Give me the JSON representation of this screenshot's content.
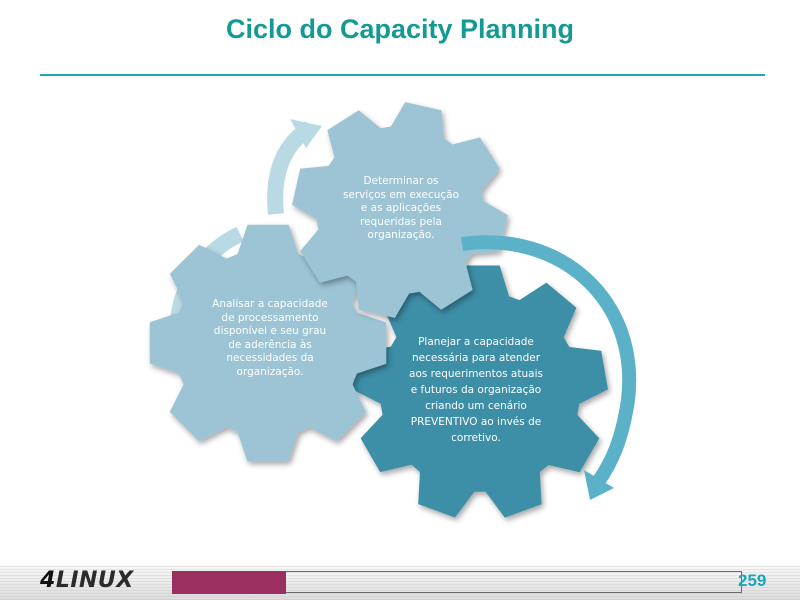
{
  "slide": {
    "title": "Ciclo do Capacity Planning",
    "page_number": "259"
  },
  "logo": {
    "digit": "4",
    "text": "LINUX"
  },
  "gears": [
    {
      "text": "Determinar os\nserviços em execução\ne as aplicações\nrequeridas pela\norganização.",
      "color": "#9cc4d5"
    },
    {
      "text": "Analisar a capacidade\nde processamento\ndisponível e seu grau\nde aderência às\nnecessidades da\norganização.",
      "color": "#9cc4d5"
    },
    {
      "text": "Planejar a capacidade\nnecessária para atender\naos requerimentos atuais\ne futuros da organização\ncriando um cenário\nPREVENTIVO ao invés de\ncorretivo.",
      "color": "#3e8ea7"
    }
  ],
  "colors": {
    "title": "#139a94",
    "accent_line": "#1da5b9",
    "arrow_light": "#b4d6e2",
    "arrow_dark": "#5bb2c8",
    "footer_bar": "#9b2f5f"
  }
}
